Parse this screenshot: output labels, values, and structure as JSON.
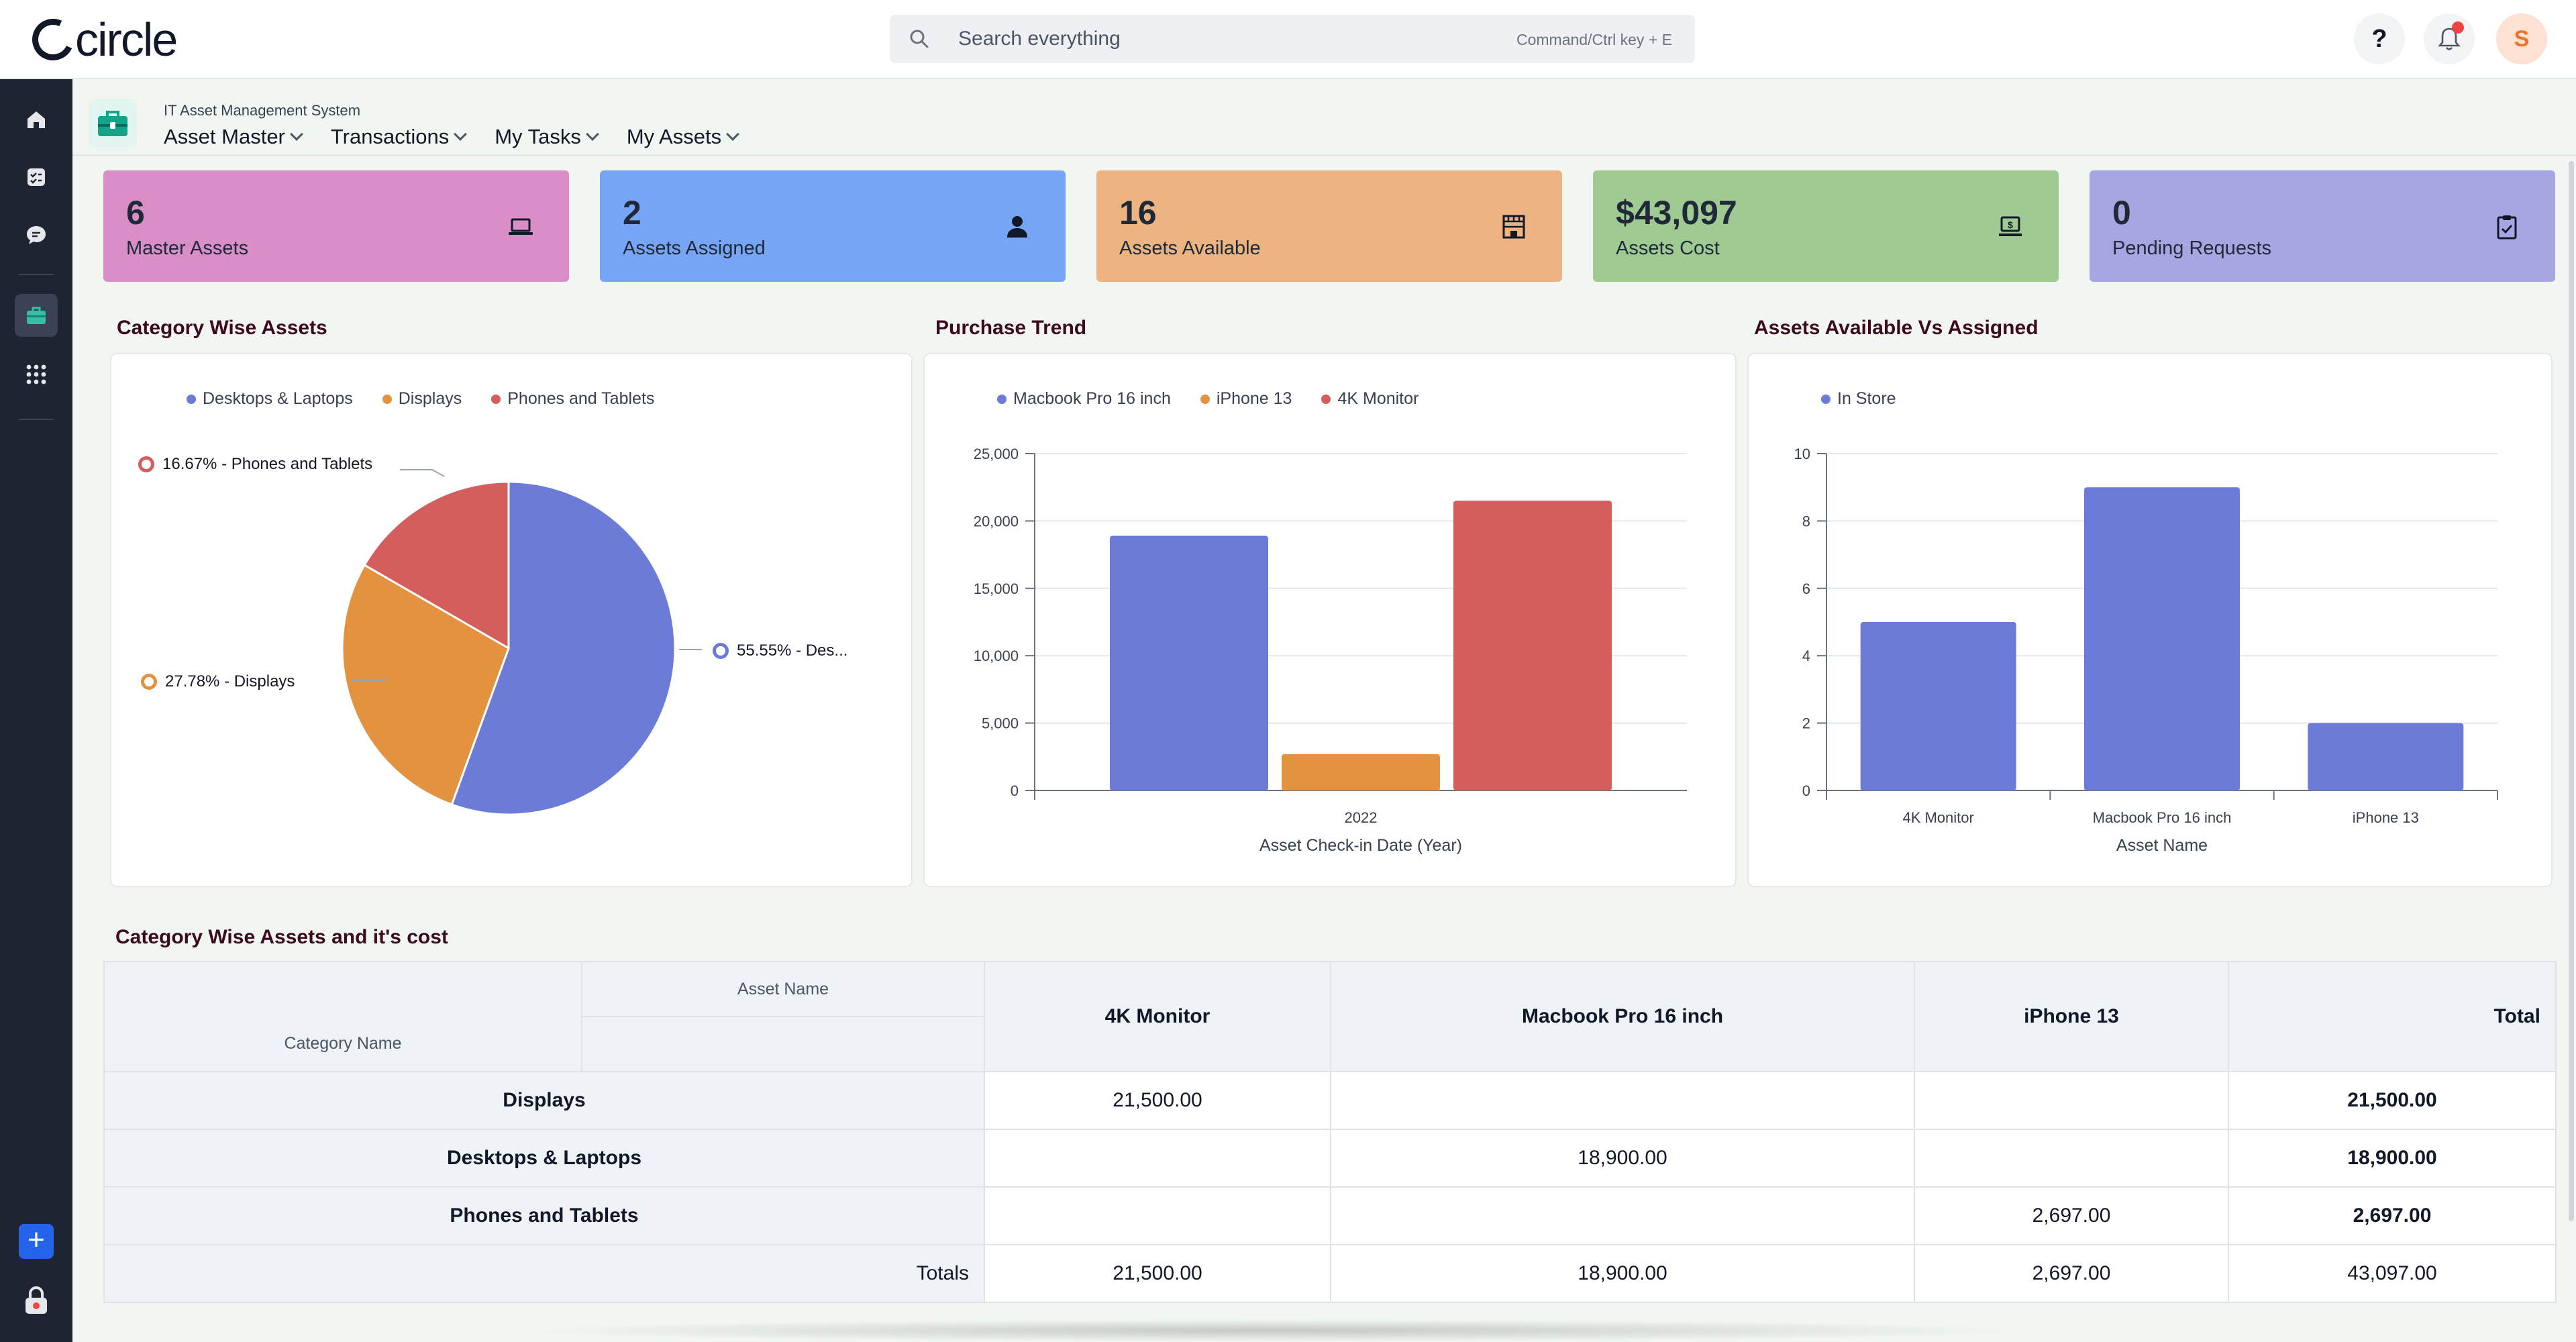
{
  "app": {
    "logo_text": "circle",
    "module_title": "IT Asset Management System"
  },
  "search": {
    "placeholder": "Search everything",
    "shortcut": "Command/Ctrl key + E"
  },
  "topbar": {
    "help_label": "?",
    "avatar_initial": "S"
  },
  "nav": [
    {
      "label": "Asset Master"
    },
    {
      "label": "Transactions"
    },
    {
      "label": "My Tasks"
    },
    {
      "label": "My Assets"
    }
  ],
  "kpis": [
    {
      "value": "6",
      "label": "Master Assets",
      "color": "#d98ec7",
      "icon": "laptop-icon"
    },
    {
      "value": "2",
      "label": "Assets Assigned",
      "color": "#76a5f5",
      "icon": "user-icon"
    },
    {
      "value": "16",
      "label": "Assets Available",
      "color": "#edb482",
      "icon": "store-icon"
    },
    {
      "value": "$43,097",
      "label": "Assets Cost",
      "color": "#9fcb92",
      "icon": "cash-icon"
    },
    {
      "value": "0",
      "label": "Pending Requests",
      "color": "#a6a6e2",
      "icon": "clipboard-icon"
    }
  ],
  "sections": {
    "category_wise": "Category Wise Assets",
    "purchase_trend": "Purchase Trend",
    "available_vs_assigned": "Assets Available Vs Assigned",
    "table_title": "Category Wise Assets and it's cost"
  },
  "colors": {
    "blue": "#6b7bd6",
    "orange": "#e3923f",
    "red": "#d45d5d",
    "accent": "#2563eb",
    "sidebar": "#1f2433"
  },
  "chart_data": [
    {
      "type": "pie",
      "title": "Category Wise Assets",
      "categories": [
        "Desktops & Laptops",
        "Displays",
        "Phones and Tablets"
      ],
      "values": [
        55.55,
        27.78,
        16.67
      ],
      "labels": [
        "55.55%  -  Des...",
        "27.78%  -  Displays",
        "16.67%  -  Phones and Tablets"
      ],
      "legend": "top"
    },
    {
      "type": "bar",
      "title": "Purchase Trend",
      "categories": [
        "2022"
      ],
      "series": [
        {
          "name": "Macbook Pro 16 inch",
          "values": [
            18900
          ]
        },
        {
          "name": "iPhone 13",
          "values": [
            2697
          ]
        },
        {
          "name": "4K Monitor",
          "values": [
            21500
          ]
        }
      ],
      "xlabel": "Asset Check-in Date (Year)",
      "ylabel": "",
      "ylim": [
        0,
        25000
      ],
      "yticks": [
        "0",
        "5,000",
        "10,000",
        "15,000",
        "20,000",
        "25,000"
      ],
      "grid": true,
      "legend": "top"
    },
    {
      "type": "bar",
      "title": "Assets Available Vs Assigned",
      "categories": [
        "4K Monitor",
        "Macbook Pro 16 inch",
        "iPhone 13"
      ],
      "series": [
        {
          "name": "In Store",
          "values": [
            5,
            9,
            2
          ]
        }
      ],
      "xlabel": "Asset Name",
      "ylabel": "",
      "ylim": [
        0,
        10
      ],
      "yticks": [
        "0",
        "2",
        "4",
        "6",
        "8",
        "10"
      ],
      "grid": true,
      "legend": "top"
    }
  ],
  "table": {
    "col_dim_label": "Asset Name",
    "row_dim_label": "Category Name",
    "columns": [
      "4K Monitor",
      "Macbook Pro 16 inch",
      "iPhone 13",
      "Total"
    ],
    "rows": [
      {
        "name": "Displays",
        "cells": [
          "21,500.00",
          "",
          "",
          "21,500.00"
        ]
      },
      {
        "name": "Desktops & Laptops",
        "cells": [
          "",
          "18,900.00",
          "",
          "18,900.00"
        ]
      },
      {
        "name": "Phones and Tablets",
        "cells": [
          "",
          "",
          "2,697.00",
          "2,697.00"
        ]
      }
    ],
    "totals": {
      "label": "Totals",
      "cells": [
        "21,500.00",
        "18,900.00",
        "2,697.00",
        "43,097.00"
      ]
    }
  }
}
